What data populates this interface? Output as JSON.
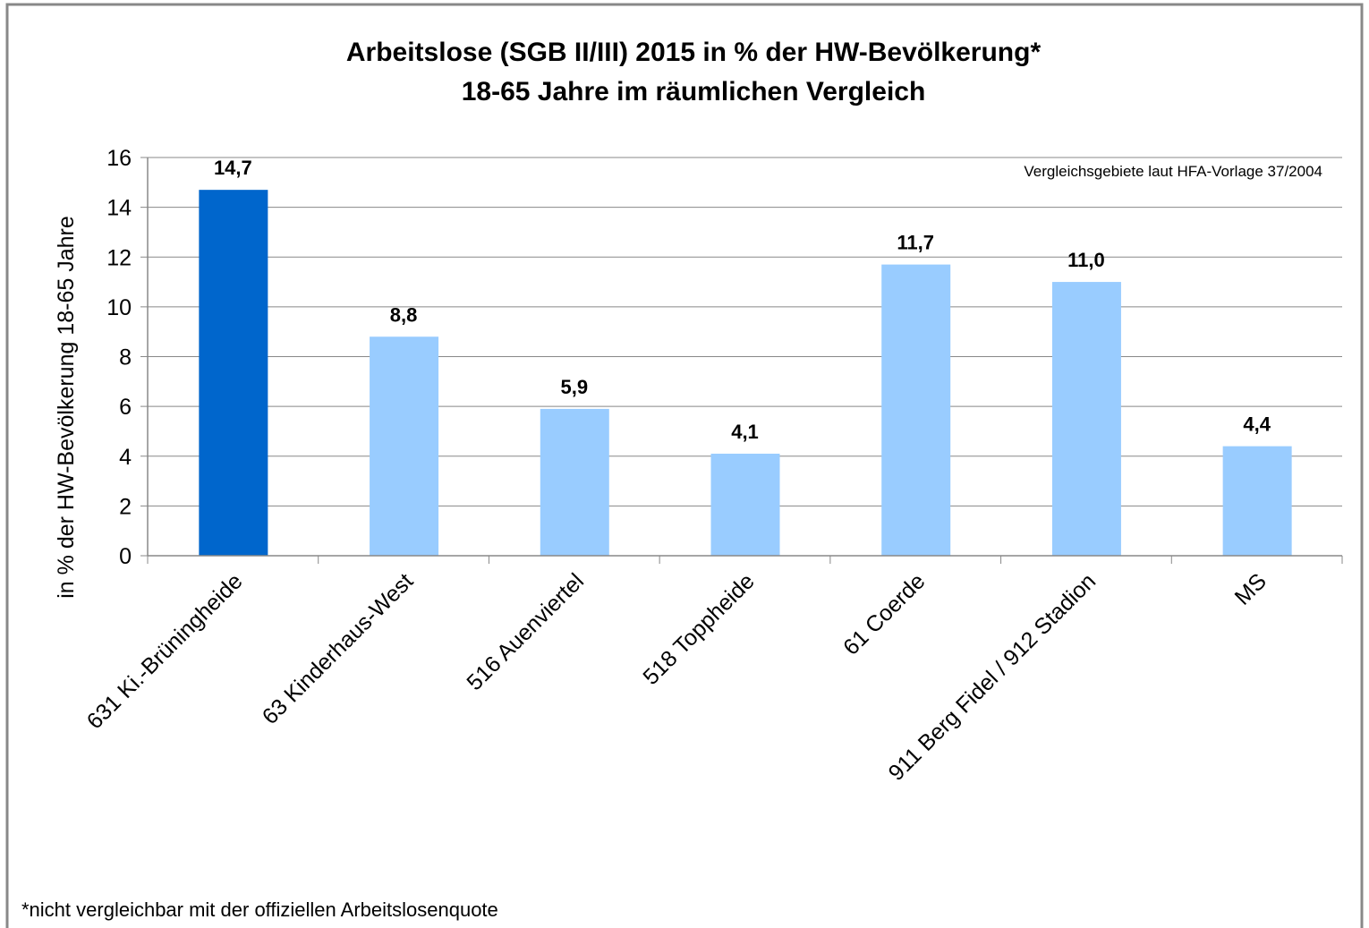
{
  "chart_data": {
    "type": "bar",
    "title": [
      "Arbeitslose  (SGB II/III)  2015  in % der HW-Bevölkerung*",
      "18-65 Jahre im räumlichen  Vergleich"
    ],
    "y_label": "in % der HW-Bevölkerung  18-65 Jahre",
    "annotation": "Vergleichsgebiete laut HFA-Vorlage 37/2004",
    "footnote": "*nicht vergleichbar mit der offiziellen Arbeitslosenquote",
    "categories": [
      "631 Ki.-Brüningheide",
      "63 Kinderhaus-West",
      "516 Auenviertel",
      "518 Toppheide",
      "61 Coerde",
      "911 Berg Fidel / 912 Stadion",
      "MS"
    ],
    "values": [
      14.7,
      8.8,
      5.9,
      4.1,
      11.7,
      11.0,
      4.4
    ],
    "value_labels": [
      "14,7",
      "8,8",
      "5,9",
      "4,1",
      "11,7",
      "11,0",
      "4,4"
    ],
    "colors": [
      "#0066cc",
      "#99ccff",
      "#99ccff",
      "#99ccff",
      "#99ccff",
      "#99ccff",
      "#99ccff"
    ],
    "ylim": [
      0,
      16
    ],
    "yticks": [
      0,
      2,
      4,
      6,
      8,
      10,
      12,
      14,
      16
    ],
    "grid": true
  }
}
